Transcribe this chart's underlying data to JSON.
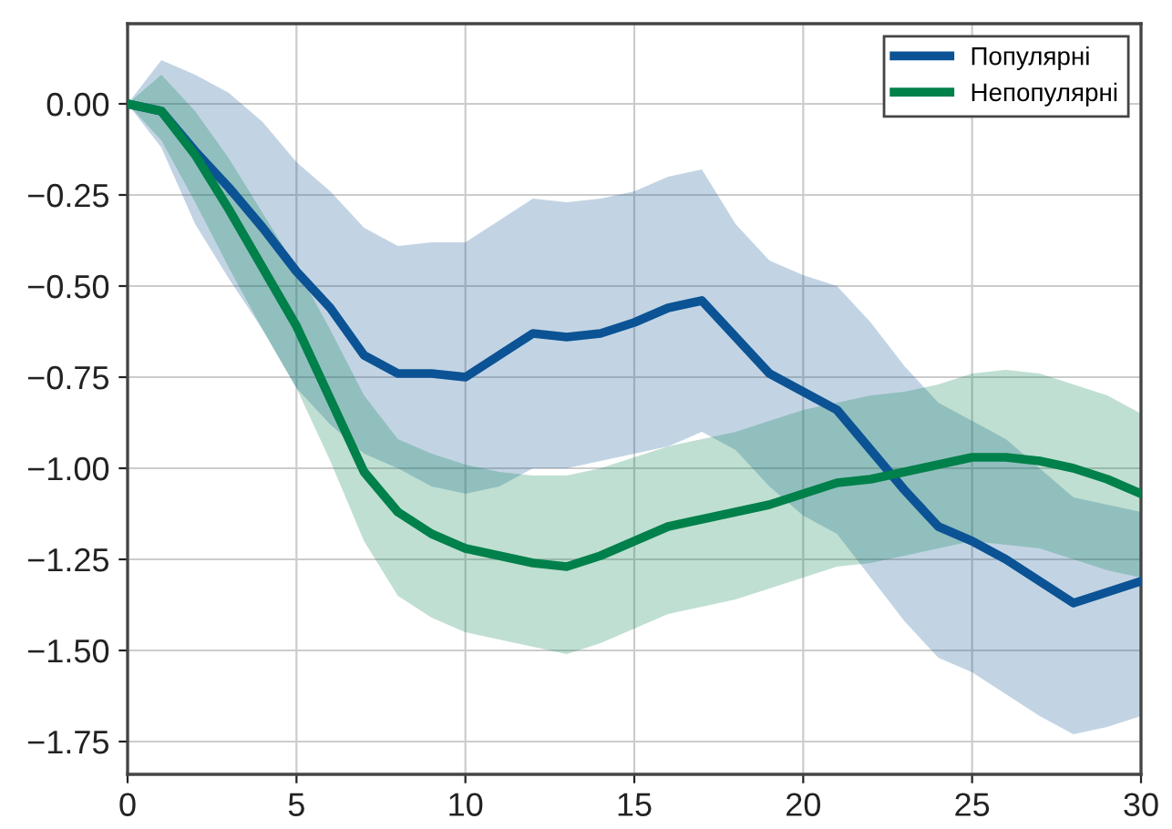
{
  "chart_data": {
    "type": "line",
    "x": [
      0,
      1,
      2,
      3,
      4,
      5,
      6,
      7,
      8,
      9,
      10,
      11,
      12,
      13,
      14,
      15,
      16,
      17,
      18,
      19,
      20,
      21,
      22,
      23,
      24,
      25,
      26,
      27,
      28,
      29,
      30
    ],
    "series": [
      {
        "name": "Популярні",
        "color": "#0b5394",
        "values": [
          0,
          -0.02,
          -0.13,
          -0.23,
          -0.34,
          -0.46,
          -0.56,
          -0.69,
          -0.74,
          -0.74,
          -0.75,
          -0.69,
          -0.63,
          -0.64,
          -0.63,
          -0.6,
          -0.56,
          -0.54,
          -0.64,
          -0.74,
          -0.79,
          -0.84,
          -0.95,
          -1.06,
          -1.16,
          -1.2,
          -1.25,
          -1.31,
          -1.37,
          -1.34,
          -1.31
        ],
        "upper": [
          0,
          0.12,
          0.08,
          0.03,
          -0.05,
          -0.16,
          -0.24,
          -0.34,
          -0.39,
          -0.38,
          -0.38,
          -0.32,
          -0.26,
          -0.27,
          -0.26,
          -0.24,
          -0.2,
          -0.18,
          -0.33,
          -0.43,
          -0.47,
          -0.5,
          -0.6,
          -0.72,
          -0.82,
          -0.87,
          -0.92,
          -1.0,
          -1.08,
          -1.1,
          -1.12
        ],
        "lower": [
          0,
          -0.12,
          -0.33,
          -0.48,
          -0.62,
          -0.78,
          -0.88,
          -0.96,
          -1.0,
          -1.05,
          -1.07,
          -1.05,
          -1.0,
          -1.0,
          -0.98,
          -0.96,
          -0.94,
          -0.9,
          -0.95,
          -1.05,
          -1.13,
          -1.18,
          -1.3,
          -1.42,
          -1.52,
          -1.56,
          -1.62,
          -1.68,
          -1.73,
          -1.71,
          -1.68
        ]
      },
      {
        "name": "Непопулярні",
        "color": "#00804a",
        "values": [
          0,
          -0.02,
          -0.14,
          -0.29,
          -0.45,
          -0.61,
          -0.81,
          -1.01,
          -1.12,
          -1.18,
          -1.22,
          -1.24,
          -1.26,
          -1.27,
          -1.24,
          -1.2,
          -1.16,
          -1.14,
          -1.12,
          -1.1,
          -1.07,
          -1.04,
          -1.03,
          -1.01,
          -0.99,
          -0.97,
          -0.97,
          -0.98,
          -1.0,
          -1.03,
          -1.07
        ],
        "upper": [
          0,
          0.08,
          -0.02,
          -0.15,
          -0.3,
          -0.45,
          -0.62,
          -0.8,
          -0.92,
          -0.96,
          -0.99,
          -1.01,
          -1.02,
          -1.02,
          -1.0,
          -0.97,
          -0.94,
          -0.92,
          -0.9,
          -0.87,
          -0.84,
          -0.82,
          -0.8,
          -0.79,
          -0.77,
          -0.74,
          -0.73,
          -0.74,
          -0.77,
          -0.8,
          -0.85
        ],
        "lower": [
          0,
          -0.1,
          -0.27,
          -0.45,
          -0.62,
          -0.78,
          -0.98,
          -1.2,
          -1.35,
          -1.41,
          -1.45,
          -1.47,
          -1.49,
          -1.51,
          -1.48,
          -1.44,
          -1.4,
          -1.38,
          -1.36,
          -1.33,
          -1.3,
          -1.27,
          -1.26,
          -1.24,
          -1.22,
          -1.2,
          -1.21,
          -1.22,
          -1.25,
          -1.28,
          -1.3
        ]
      }
    ],
    "xlim": [
      0,
      30
    ],
    "xticks": [
      0,
      5,
      10,
      15,
      20,
      25,
      30
    ],
    "ylim": [
      -1.84,
      0.22
    ],
    "yticks": [
      {
        "value": 0,
        "label": "0.00"
      },
      {
        "value": -0.25,
        "label": "−0.25"
      },
      {
        "value": -0.5,
        "label": "−0.50"
      },
      {
        "value": -0.75,
        "label": "−0.75"
      },
      {
        "value": -1,
        "label": "−1.00"
      },
      {
        "value": -1.25,
        "label": "−1.25"
      },
      {
        "value": -1.5,
        "label": "−1.50"
      },
      {
        "value": -1.75,
        "label": "−1.75"
      }
    ],
    "grid": true,
    "legend": "top right",
    "marker": "none",
    "line_style": "solid"
  }
}
